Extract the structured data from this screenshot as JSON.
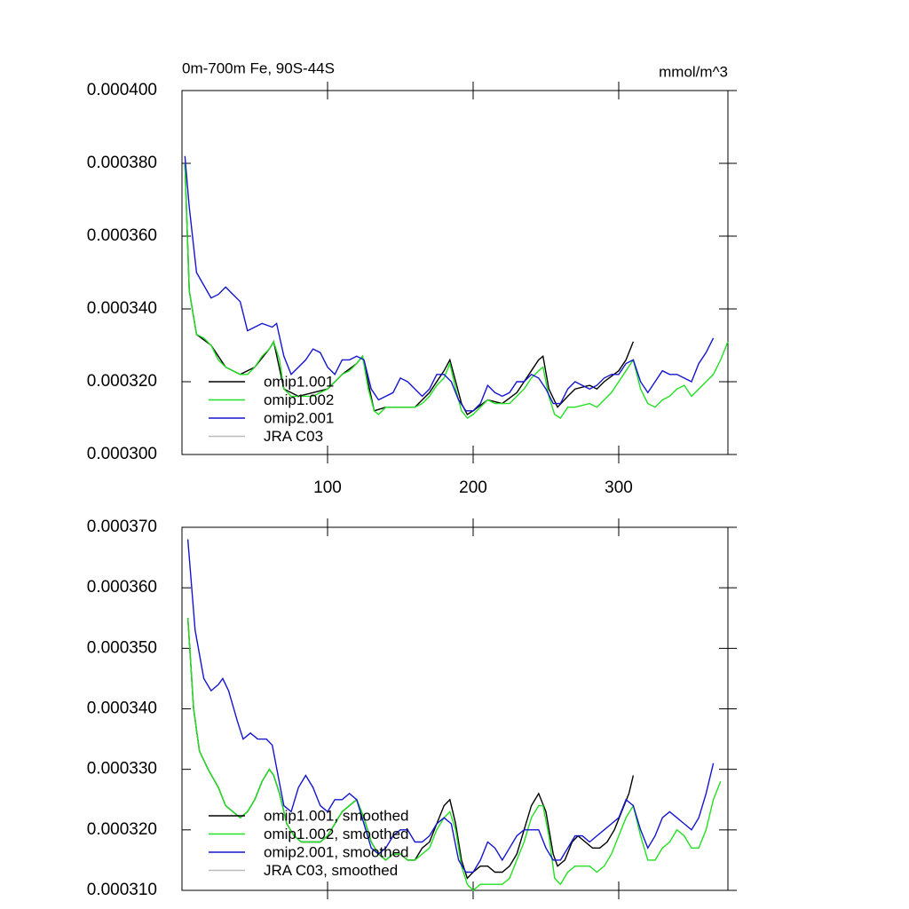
{
  "chart_data": [
    {
      "type": "line",
      "title": "0m-700m Fe, 90S-44S",
      "units": "mmol/m^3",
      "xlim": [
        0,
        375
      ],
      "xticks": [
        100,
        200,
        300
      ],
      "xtick_labels": true,
      "ylim": [
        0.0003,
        0.0004
      ],
      "yticks": [
        {
          "value": 0.0003,
          "label": "0.000300"
        },
        {
          "value": 0.00032,
          "label": "0.000320"
        },
        {
          "value": 0.00034,
          "label": "0.000340"
        },
        {
          "value": 0.00036,
          "label": "0.000360"
        },
        {
          "value": 0.00038,
          "label": "0.000380"
        },
        {
          "value": 0.0004,
          "label": "0.000400"
        }
      ],
      "series": [
        {
          "name": "omip1.001",
          "color": "#000000",
          "x": [
            2,
            5,
            10,
            20,
            30,
            40,
            50,
            60,
            63,
            70,
            80,
            100,
            110,
            120,
            124,
            132,
            140,
            160,
            170,
            180,
            184,
            192,
            196,
            200,
            210,
            220,
            230,
            240,
            245,
            248,
            252,
            258,
            265,
            270,
            280,
            285,
            290,
            300,
            305,
            310
          ],
          "values": [
            0.00038,
            0.000345,
            0.000333,
            0.00033,
            0.000324,
            0.000322,
            0.000324,
            0.000329,
            0.000331,
            0.000318,
            0.000316,
            0.000318,
            0.000322,
            0.000325,
            0.000327,
            0.000312,
            0.000313,
            0.000313,
            0.000317,
            0.000323,
            0.000326,
            0.000314,
            0.000311,
            0.000312,
            0.000315,
            0.000314,
            0.000317,
            0.000323,
            0.000326,
            0.000327,
            0.000318,
            0.000313,
            0.000316,
            0.000318,
            0.000319,
            0.000318,
            0.00032,
            0.000323,
            0.000326,
            0.000331
          ]
        },
        {
          "name": "omip1.002",
          "color": "#22e022",
          "x": [
            2,
            5,
            10,
            15,
            20,
            25,
            30,
            35,
            40,
            45,
            50,
            55,
            60,
            63,
            67,
            70,
            75,
            80,
            90,
            100,
            105,
            110,
            115,
            120,
            124,
            128,
            132,
            135,
            140,
            150,
            160,
            165,
            170,
            175,
            180,
            184,
            188,
            192,
            196,
            200,
            205,
            210,
            215,
            220,
            225,
            230,
            235,
            240,
            245,
            248,
            252,
            256,
            260,
            265,
            270,
            280,
            285,
            290,
            295,
            300,
            305,
            310,
            315,
            320,
            325,
            330,
            335,
            340,
            345,
            350,
            355,
            360,
            365,
            370,
            375
          ],
          "values": [
            0.00038,
            0.000345,
            0.000333,
            0.000332,
            0.00033,
            0.000326,
            0.000324,
            0.000323,
            0.000322,
            0.000322,
            0.000324,
            0.000327,
            0.000329,
            0.000331,
            0.000326,
            0.000318,
            0.000316,
            0.000316,
            0.000316,
            0.000318,
            0.00032,
            0.000322,
            0.000323,
            0.000325,
            0.000327,
            0.000318,
            0.000312,
            0.000311,
            0.000313,
            0.000313,
            0.000313,
            0.000314,
            0.000316,
            0.000319,
            0.000321,
            0.000325,
            0.000318,
            0.000312,
            0.00031,
            0.000311,
            0.000313,
            0.000315,
            0.000314,
            0.000314,
            0.000314,
            0.000316,
            0.000318,
            0.000321,
            0.000323,
            0.000324,
            0.000316,
            0.000311,
            0.00031,
            0.000313,
            0.000313,
            0.000314,
            0.000313,
            0.000315,
            0.000317,
            0.00032,
            0.000323,
            0.000326,
            0.000318,
            0.000314,
            0.000313,
            0.000315,
            0.000316,
            0.000318,
            0.000319,
            0.000316,
            0.000318,
            0.00032,
            0.000322,
            0.000326,
            0.000331
          ]
        },
        {
          "name": "omip2.001",
          "color": "#1515d0",
          "x": [
            2,
            5,
            10,
            20,
            25,
            30,
            40,
            45,
            55,
            62,
            65,
            70,
            75,
            80,
            85,
            90,
            95,
            100,
            105,
            110,
            115,
            120,
            125,
            130,
            135,
            145,
            150,
            155,
            160,
            165,
            170,
            175,
            180,
            185,
            190,
            195,
            200,
            205,
            210,
            215,
            220,
            225,
            230,
            235,
            240,
            245,
            250,
            255,
            260,
            265,
            270,
            275,
            280,
            285,
            290,
            295,
            300,
            305,
            310,
            315,
            320,
            325,
            330,
            335,
            340,
            345,
            350,
            355,
            360,
            365
          ],
          "values": [
            0.000382,
            0.000368,
            0.00035,
            0.000343,
            0.000344,
            0.000346,
            0.000342,
            0.000334,
            0.000336,
            0.000335,
            0.000336,
            0.000327,
            0.000322,
            0.000324,
            0.000326,
            0.000329,
            0.000328,
            0.000324,
            0.000322,
            0.000326,
            0.000326,
            0.000327,
            0.000326,
            0.000318,
            0.000315,
            0.000317,
            0.000321,
            0.00032,
            0.000318,
            0.000316,
            0.000318,
            0.000322,
            0.000322,
            0.00032,
            0.000315,
            0.000312,
            0.000312,
            0.000314,
            0.000319,
            0.000317,
            0.000316,
            0.000317,
            0.00032,
            0.00032,
            0.000322,
            0.000321,
            0.000318,
            0.000314,
            0.000314,
            0.000318,
            0.00032,
            0.000319,
            0.000318,
            0.000319,
            0.000321,
            0.000322,
            0.000322,
            0.000325,
            0.000326,
            0.00032,
            0.000317,
            0.00032,
            0.000323,
            0.000322,
            0.000322,
            0.000321,
            0.00032,
            0.000325,
            0.000328,
            0.000332
          ]
        },
        {
          "name": "JRA C03",
          "color": "#bbbbbb",
          "x": [],
          "values": []
        }
      ]
    },
    {
      "type": "line",
      "xlim": [
        0,
        375
      ],
      "xticks": [
        100,
        200,
        300
      ],
      "xtick_labels": false,
      "ylim": [
        0.00031,
        0.00037
      ],
      "yticks": [
        {
          "value": 0.00031,
          "label": "0.000310"
        },
        {
          "value": 0.00032,
          "label": "0.000320"
        },
        {
          "value": 0.00033,
          "label": "0.000330"
        },
        {
          "value": 0.00034,
          "label": "0.000340"
        },
        {
          "value": 0.00035,
          "label": "0.000350"
        },
        {
          "value": 0.00036,
          "label": "0.000360"
        },
        {
          "value": 0.00037,
          "label": "0.000370"
        }
      ],
      "series": [
        {
          "name": "omip1.001, smoothed",
          "color": "#000000",
          "x": [
            4,
            8,
            12,
            18,
            25,
            30,
            35,
            40,
            45,
            50,
            55,
            60,
            63,
            67,
            72,
            77,
            82,
            90,
            95,
            100,
            105,
            110,
            115,
            120,
            125,
            130,
            135,
            140,
            145,
            150,
            155,
            160,
            165,
            170,
            175,
            180,
            184,
            188,
            192,
            196,
            200,
            205,
            210,
            215,
            220,
            225,
            230,
            235,
            240,
            245,
            250,
            255,
            258,
            263,
            268,
            272,
            277,
            282,
            287,
            292,
            297,
            302,
            307,
            310
          ],
          "values": [
            0.000355,
            0.00034,
            0.000333,
            0.00033,
            0.000327,
            0.000324,
            0.000323,
            0.000322,
            0.000323,
            0.000325,
            0.000328,
            0.00033,
            0.000329,
            0.000326,
            0.000321,
            0.000319,
            0.000318,
            0.000318,
            0.000318,
            0.000319,
            0.000321,
            0.000323,
            0.000324,
            0.000325,
            0.000322,
            0.000318,
            0.000316,
            0.000315,
            0.000316,
            0.000316,
            0.000315,
            0.000315,
            0.000317,
            0.000318,
            0.000321,
            0.000324,
            0.000325,
            0.000321,
            0.000315,
            0.000312,
            0.000313,
            0.000314,
            0.000314,
            0.000313,
            0.000313,
            0.000314,
            0.000316,
            0.00032,
            0.000324,
            0.000326,
            0.000323,
            0.000316,
            0.000314,
            0.000315,
            0.000318,
            0.000319,
            0.000318,
            0.000317,
            0.000317,
            0.000318,
            0.00032,
            0.000323,
            0.000326,
            0.000329
          ]
        },
        {
          "name": "omip1.002, smoothed",
          "color": "#22e022",
          "x": [
            4,
            8,
            12,
            18,
            25,
            30,
            35,
            40,
            45,
            50,
            55,
            60,
            63,
            67,
            72,
            77,
            82,
            90,
            95,
            100,
            105,
            110,
            115,
            120,
            125,
            130,
            135,
            140,
            145,
            150,
            155,
            160,
            165,
            170,
            175,
            180,
            184,
            188,
            192,
            196,
            200,
            205,
            210,
            215,
            220,
            225,
            230,
            235,
            240,
            245,
            248,
            252,
            256,
            260,
            265,
            270,
            275,
            280,
            285,
            290,
            295,
            300,
            305,
            310,
            315,
            320,
            325,
            330,
            335,
            340,
            345,
            350,
            355,
            360,
            365,
            370
          ],
          "values": [
            0.000355,
            0.00034,
            0.000333,
            0.00033,
            0.000327,
            0.000324,
            0.000323,
            0.000322,
            0.000323,
            0.000325,
            0.000328,
            0.00033,
            0.000329,
            0.000326,
            0.000321,
            0.000319,
            0.000318,
            0.000318,
            0.000318,
            0.000319,
            0.000321,
            0.000323,
            0.000324,
            0.000325,
            0.000322,
            0.000318,
            0.000316,
            0.000315,
            0.000316,
            0.000316,
            0.000315,
            0.000315,
            0.000316,
            0.000317,
            0.00032,
            0.000322,
            0.000323,
            0.00032,
            0.000314,
            0.000311,
            0.00031,
            0.000311,
            0.000311,
            0.000311,
            0.000311,
            0.000312,
            0.000315,
            0.000318,
            0.000322,
            0.000324,
            0.000324,
            0.000319,
            0.000312,
            0.000311,
            0.000313,
            0.000314,
            0.000314,
            0.000314,
            0.000313,
            0.000314,
            0.000316,
            0.000319,
            0.000322,
            0.000324,
            0.000319,
            0.000315,
            0.000315,
            0.000317,
            0.000318,
            0.00032,
            0.000319,
            0.000317,
            0.000317,
            0.00032,
            0.000325,
            0.000328
          ]
        },
        {
          "name": "omip2.001, smoothed",
          "color": "#1515d0",
          "x": [
            4,
            9,
            15,
            20,
            25,
            28,
            32,
            38,
            42,
            47,
            52,
            58,
            62,
            66,
            70,
            75,
            80,
            85,
            90,
            95,
            100,
            105,
            110,
            115,
            120,
            125,
            130,
            135,
            140,
            145,
            150,
            155,
            160,
            165,
            170,
            175,
            180,
            185,
            190,
            195,
            200,
            205,
            210,
            215,
            220,
            225,
            230,
            235,
            240,
            245,
            250,
            255,
            260,
            265,
            270,
            275,
            280,
            285,
            290,
            295,
            300,
            305,
            310,
            315,
            320,
            325,
            330,
            335,
            340,
            345,
            350,
            355,
            360,
            365
          ],
          "values": [
            0.000368,
            0.000353,
            0.000345,
            0.000343,
            0.000344,
            0.000345,
            0.000343,
            0.000338,
            0.000335,
            0.000336,
            0.000335,
            0.000335,
            0.000334,
            0.000329,
            0.000324,
            0.000323,
            0.000327,
            0.000329,
            0.000327,
            0.000324,
            0.000323,
            0.000325,
            0.000325,
            0.000326,
            0.000325,
            0.000321,
            0.000317,
            0.000316,
            0.000317,
            0.000319,
            0.00032,
            0.00032,
            0.000318,
            0.000318,
            0.000319,
            0.000321,
            0.000322,
            0.000321,
            0.000315,
            0.000313,
            0.000313,
            0.000315,
            0.000318,
            0.000317,
            0.000315,
            0.000317,
            0.000319,
            0.00032,
            0.00032,
            0.00032,
            0.000317,
            0.000315,
            0.000315,
            0.000317,
            0.000319,
            0.000319,
            0.000318,
            0.000319,
            0.00032,
            0.000321,
            0.000322,
            0.000325,
            0.000324,
            0.00032,
            0.000317,
            0.000319,
            0.000322,
            0.000323,
            0.000322,
            0.000321,
            0.00032,
            0.000322,
            0.000326,
            0.000331
          ]
        },
        {
          "name": "JRA C03, smoothed",
          "color": "#bbbbbb",
          "x": [],
          "values": []
        }
      ]
    }
  ]
}
